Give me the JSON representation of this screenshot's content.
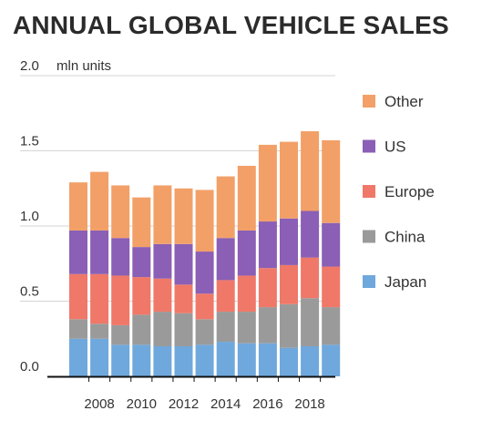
{
  "title": "ANNUAL GLOBAL VEHICLE SALES",
  "chart_data": {
    "type": "bar",
    "stacked": true,
    "title": "ANNUAL GLOBAL VEHICLE SALES",
    "ylabel": "mln units",
    "xlabel": "",
    "ylim": [
      0,
      2.0
    ],
    "yticks": [
      0.0,
      0.5,
      1.0,
      1.5,
      2.0
    ],
    "ytick_labels": [
      "0.0",
      "0.5",
      "1.0",
      "1.5",
      "2.0"
    ],
    "grid": true,
    "legend_position": "right",
    "categories": [
      "2007",
      "2008",
      "2009",
      "2010",
      "2011",
      "2012",
      "2013",
      "2014",
      "2015",
      "2016",
      "2017",
      "2018",
      "2019"
    ],
    "xtick_labels": [
      "2008",
      "2010",
      "2012",
      "2014",
      "2016",
      "2018"
    ],
    "series": [
      {
        "name": "Japan",
        "color": "#6fa8dc",
        "values": [
          0.25,
          0.25,
          0.21,
          0.21,
          0.2,
          0.2,
          0.21,
          0.23,
          0.22,
          0.22,
          0.19,
          0.2,
          0.21
        ]
      },
      {
        "name": "China",
        "color": "#9a9a9a",
        "values": [
          0.13,
          0.1,
          0.13,
          0.2,
          0.23,
          0.22,
          0.17,
          0.2,
          0.21,
          0.24,
          0.29,
          0.32,
          0.25
        ]
      },
      {
        "name": "Europe",
        "color": "#f07868",
        "values": [
          0.3,
          0.33,
          0.33,
          0.25,
          0.22,
          0.19,
          0.17,
          0.21,
          0.24,
          0.26,
          0.26,
          0.27,
          0.27
        ]
      },
      {
        "name": "US",
        "color": "#8a5fb5",
        "values": [
          0.29,
          0.29,
          0.25,
          0.2,
          0.23,
          0.27,
          0.28,
          0.28,
          0.3,
          0.31,
          0.31,
          0.31,
          0.29
        ]
      },
      {
        "name": "Other",
        "color": "#f2a068",
        "values": [
          0.32,
          0.39,
          0.35,
          0.33,
          0.39,
          0.37,
          0.41,
          0.41,
          0.43,
          0.51,
          0.51,
          0.53,
          0.55
        ]
      }
    ],
    "legend_order": [
      "Other",
      "US",
      "Europe",
      "China",
      "Japan"
    ]
  }
}
